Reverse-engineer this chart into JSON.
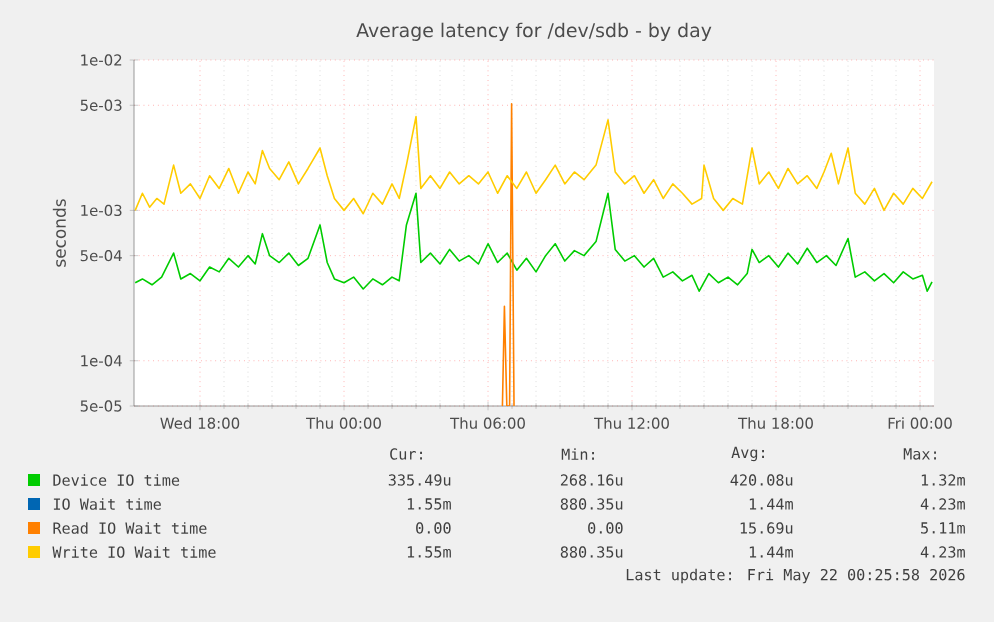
{
  "chart_data": {
    "type": "line",
    "title": "Average latency for /dev/sdb - by day",
    "ylabel": "seconds",
    "log": true,
    "grid": true,
    "legend": "bottom",
    "marker": "none",
    "line_style": "solid",
    "xlim": [
      "2026-05-20T15:15",
      "2026-05-22T00:35"
    ],
    "xticks": [
      {
        "value": "2026-05-20T18:00",
        "label": "Wed 18:00"
      },
      {
        "value": "2026-05-21T00:00",
        "label": "Thu 00:00"
      },
      {
        "value": "2026-05-21T06:00",
        "label": "Thu 06:00"
      },
      {
        "value": "2026-05-21T12:00",
        "label": "Thu 12:00"
      },
      {
        "value": "2026-05-21T18:00",
        "label": "Thu 18:00"
      },
      {
        "value": "2026-05-22T00:00",
        "label": "Fri 00:00"
      }
    ],
    "ylim": [
      5e-05,
      0.01
    ],
    "yticks": [
      {
        "value": 5e-05,
        "label": "5e-05"
      },
      {
        "value": 0.0001,
        "label": "1e-04"
      },
      {
        "value": 0.0005,
        "label": "5e-04"
      },
      {
        "value": 0.001,
        "label": "1e-03"
      },
      {
        "value": 0.005,
        "label": "5e-03"
      },
      {
        "value": 0.01,
        "label": "1e-02"
      }
    ],
    "series": [
      {
        "name": "Device IO time",
        "color": "#00cc00",
        "x": [
          "2026-05-20T15:18",
          "2026-05-20T15:36",
          "2026-05-20T16:00",
          "2026-05-20T16:24",
          "2026-05-20T16:54",
          "2026-05-20T17:12",
          "2026-05-20T17:36",
          "2026-05-20T18:00",
          "2026-05-20T18:24",
          "2026-05-20T18:48",
          "2026-05-20T19:12",
          "2026-05-20T19:36",
          "2026-05-20T20:00",
          "2026-05-20T20:18",
          "2026-05-20T20:36",
          "2026-05-20T20:54",
          "2026-05-20T21:18",
          "2026-05-20T21:42",
          "2026-05-20T22:06",
          "2026-05-20T22:30",
          "2026-05-20T23:00",
          "2026-05-20T23:18",
          "2026-05-20T23:36",
          "2026-05-21T00:00",
          "2026-05-21T00:24",
          "2026-05-21T00:48",
          "2026-05-21T01:12",
          "2026-05-21T01:36",
          "2026-05-21T02:00",
          "2026-05-21T02:18",
          "2026-05-21T02:36",
          "2026-05-21T03:00",
          "2026-05-21T03:12",
          "2026-05-21T03:36",
          "2026-05-21T04:00",
          "2026-05-21T04:24",
          "2026-05-21T04:48",
          "2026-05-21T05:12",
          "2026-05-21T05:36",
          "2026-05-21T06:00",
          "2026-05-21T06:24",
          "2026-05-21T06:48",
          "2026-05-21T07:12",
          "2026-05-21T07:36",
          "2026-05-21T08:00",
          "2026-05-21T08:24",
          "2026-05-21T08:48",
          "2026-05-21T09:12",
          "2026-05-21T09:36",
          "2026-05-21T10:00",
          "2026-05-21T10:30",
          "2026-05-21T11:00",
          "2026-05-21T11:18",
          "2026-05-21T11:42",
          "2026-05-21T12:06",
          "2026-05-21T12:30",
          "2026-05-21T12:54",
          "2026-05-21T13:18",
          "2026-05-21T13:42",
          "2026-05-21T14:06",
          "2026-05-21T14:30",
          "2026-05-21T14:48",
          "2026-05-21T15:12",
          "2026-05-21T15:36",
          "2026-05-21T16:00",
          "2026-05-21T16:24",
          "2026-05-21T16:48",
          "2026-05-21T17:00",
          "2026-05-21T17:18",
          "2026-05-21T17:42",
          "2026-05-21T18:06",
          "2026-05-21T18:30",
          "2026-05-21T18:54",
          "2026-05-21T19:18",
          "2026-05-21T19:42",
          "2026-05-21T20:06",
          "2026-05-21T20:30",
          "2026-05-21T21:00",
          "2026-05-21T21:18",
          "2026-05-21T21:42",
          "2026-05-21T22:06",
          "2026-05-21T22:30",
          "2026-05-21T22:54",
          "2026-05-21T23:18",
          "2026-05-21T23:42",
          "2026-05-22T00:06",
          "2026-05-22T00:18",
          "2026-05-22T00:30"
        ],
        "values": [
          0.00033,
          0.00035,
          0.00032,
          0.00036,
          0.00052,
          0.00035,
          0.00038,
          0.00034,
          0.00042,
          0.00039,
          0.00048,
          0.00042,
          0.0005,
          0.00044,
          0.0007,
          0.0005,
          0.00045,
          0.00052,
          0.00043,
          0.00048,
          0.0008,
          0.00045,
          0.00035,
          0.00033,
          0.00036,
          0.0003,
          0.00035,
          0.00032,
          0.00036,
          0.00034,
          0.0008,
          0.0013,
          0.00045,
          0.00052,
          0.00044,
          0.00055,
          0.00046,
          0.0005,
          0.00044,
          0.0006,
          0.00045,
          0.00052,
          0.0004,
          0.00048,
          0.00039,
          0.0005,
          0.0006,
          0.00046,
          0.00054,
          0.0005,
          0.00062,
          0.0013,
          0.00055,
          0.00046,
          0.0005,
          0.00042,
          0.00048,
          0.00036,
          0.00039,
          0.00034,
          0.00037,
          0.00029,
          0.00038,
          0.00033,
          0.00036,
          0.00032,
          0.00038,
          0.00055,
          0.00045,
          0.0005,
          0.00042,
          0.00052,
          0.00044,
          0.00056,
          0.00045,
          0.0005,
          0.00043,
          0.00065,
          0.00036,
          0.00039,
          0.00034,
          0.00038,
          0.00033,
          0.00039,
          0.00035,
          0.00037,
          0.00029,
          0.000335
        ]
      },
      {
        "name": "IO Wait time",
        "color": "#0066b3"
      },
      {
        "name": "Read IO Wait time",
        "color": "#ff8000",
        "x": [
          "2026-05-21T06:36",
          "2026-05-21T06:41",
          "2026-05-21T06:47",
          "2026-05-21T06:54",
          "2026-05-21T06:59",
          "2026-05-21T07:05"
        ],
        "values": [
          5e-05,
          0.00023,
          5e-05,
          5e-05,
          0.00511,
          5e-05
        ]
      },
      {
        "name": "Write IO Wait time",
        "color": "#ffcc00",
        "x": [
          "2026-05-20T15:18",
          "2026-05-20T15:36",
          "2026-05-20T15:54",
          "2026-05-20T16:12",
          "2026-05-20T16:30",
          "2026-05-20T16:54",
          "2026-05-20T17:12",
          "2026-05-20T17:36",
          "2026-05-20T18:00",
          "2026-05-20T18:24",
          "2026-05-20T18:48",
          "2026-05-20T19:12",
          "2026-05-20T19:36",
          "2026-05-20T20:00",
          "2026-05-20T20:18",
          "2026-05-20T20:36",
          "2026-05-20T20:54",
          "2026-05-20T21:18",
          "2026-05-20T21:42",
          "2026-05-20T22:06",
          "2026-05-20T22:30",
          "2026-05-20T23:00",
          "2026-05-20T23:18",
          "2026-05-20T23:36",
          "2026-05-21T00:00",
          "2026-05-21T00:24",
          "2026-05-21T00:48",
          "2026-05-21T01:12",
          "2026-05-21T01:36",
          "2026-05-21T02:00",
          "2026-05-21T02:18",
          "2026-05-21T02:36",
          "2026-05-21T03:00",
          "2026-05-21T03:12",
          "2026-05-21T03:36",
          "2026-05-21T04:00",
          "2026-05-21T04:24",
          "2026-05-21T04:48",
          "2026-05-21T05:12",
          "2026-05-21T05:36",
          "2026-05-21T06:00",
          "2026-05-21T06:24",
          "2026-05-21T06:48",
          "2026-05-21T07:12",
          "2026-05-21T07:36",
          "2026-05-21T08:00",
          "2026-05-21T08:24",
          "2026-05-21T08:48",
          "2026-05-21T09:12",
          "2026-05-21T09:36",
          "2026-05-21T10:00",
          "2026-05-21T10:30",
          "2026-05-21T11:00",
          "2026-05-21T11:18",
          "2026-05-21T11:42",
          "2026-05-21T12:06",
          "2026-05-21T12:30",
          "2026-05-21T12:54",
          "2026-05-21T13:18",
          "2026-05-21T13:42",
          "2026-05-21T14:06",
          "2026-05-21T14:30",
          "2026-05-21T14:54",
          "2026-05-21T15:00",
          "2026-05-21T15:24",
          "2026-05-21T15:48",
          "2026-05-21T16:12",
          "2026-05-21T16:36",
          "2026-05-21T17:00",
          "2026-05-21T17:18",
          "2026-05-21T17:42",
          "2026-05-21T18:06",
          "2026-05-21T18:30",
          "2026-05-21T18:54",
          "2026-05-21T19:18",
          "2026-05-21T19:42",
          "2026-05-21T20:00",
          "2026-05-21T20:18",
          "2026-05-21T20:36",
          "2026-05-21T21:00",
          "2026-05-21T21:18",
          "2026-05-21T21:42",
          "2026-05-21T22:06",
          "2026-05-21T22:30",
          "2026-05-21T22:54",
          "2026-05-21T23:18",
          "2026-05-21T23:42",
          "2026-05-22T00:06",
          "2026-05-22T00:30"
        ],
        "values": [
          0.001,
          0.0013,
          0.00105,
          0.0012,
          0.0011,
          0.002,
          0.0013,
          0.0015,
          0.0012,
          0.0017,
          0.0014,
          0.0019,
          0.0013,
          0.0018,
          0.0015,
          0.0025,
          0.0019,
          0.0016,
          0.0021,
          0.0015,
          0.0019,
          0.0026,
          0.0017,
          0.0012,
          0.001,
          0.0012,
          0.00095,
          0.0013,
          0.0011,
          0.0015,
          0.0012,
          0.002,
          0.0042,
          0.0014,
          0.0017,
          0.0014,
          0.0018,
          0.0015,
          0.0017,
          0.0015,
          0.0018,
          0.0013,
          0.0017,
          0.0014,
          0.0018,
          0.0013,
          0.0016,
          0.002,
          0.0015,
          0.0018,
          0.0016,
          0.002,
          0.004,
          0.0018,
          0.0015,
          0.0017,
          0.0013,
          0.0016,
          0.0012,
          0.0015,
          0.0013,
          0.0011,
          0.0012,
          0.002,
          0.0012,
          0.001,
          0.0012,
          0.0011,
          0.0026,
          0.0015,
          0.0018,
          0.0014,
          0.0019,
          0.0015,
          0.0017,
          0.0014,
          0.0018,
          0.0024,
          0.0015,
          0.0026,
          0.0013,
          0.0011,
          0.0014,
          0.001,
          0.0013,
          0.0011,
          0.0014,
          0.0012,
          0.00155
        ]
      }
    ],
    "annotations": [
      "Cur:",
      "Min:",
      "Avg:",
      "Max:",
      "335.49u",
      "268.16u",
      "420.08u",
      "1.32m",
      "1.55m",
      "880.35u",
      "1.44m",
      "4.23m",
      "0.00",
      "0.00",
      "15.69u",
      "5.11m",
      "1.55m",
      "880.35u",
      "1.44m",
      "4.23m",
      "Last update: Fri May 22 00:25:58 2026"
    ]
  }
}
